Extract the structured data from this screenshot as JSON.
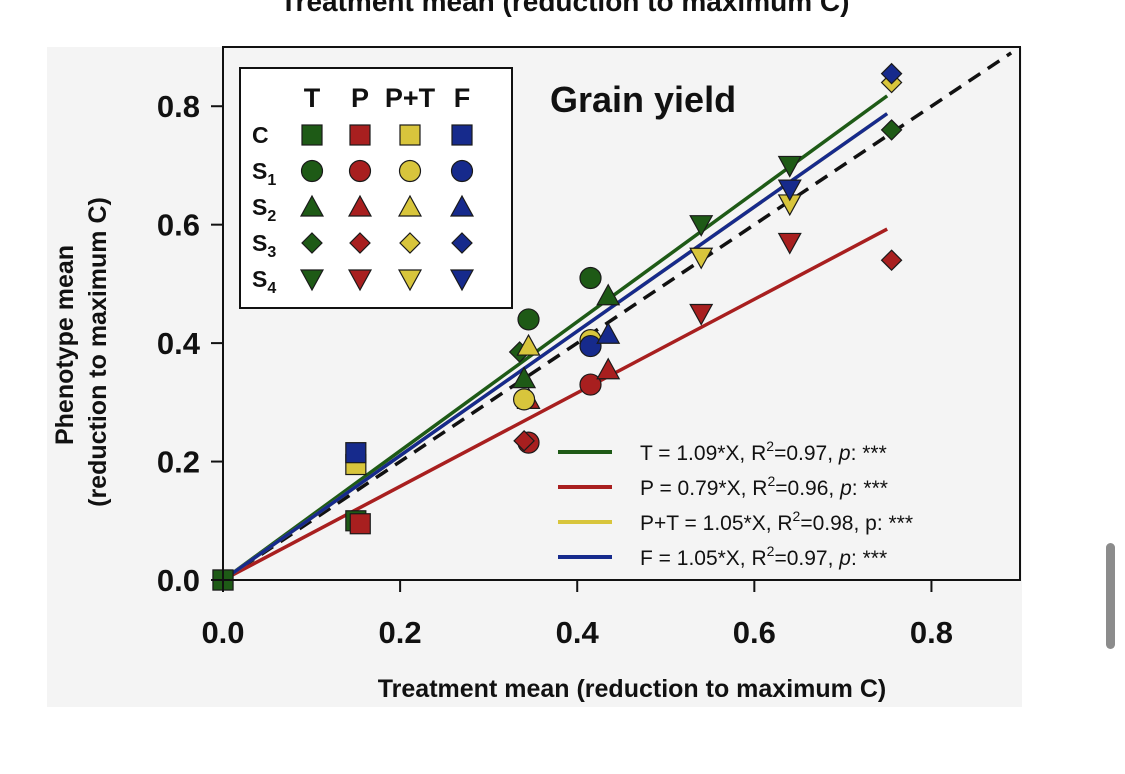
{
  "chart_data": {
    "type": "scatter",
    "cropped_top_title": "Treatment mean (reduction to maximum C)",
    "title": "Grain yield",
    "xlabel": "Treatment mean (reduction to maximum C)",
    "ylabel_line1": "Phenotype mean",
    "ylabel_line2": "(reduction to maximum C)",
    "xlim": [
      0.0,
      0.9
    ],
    "ylim": [
      0.0,
      0.9
    ],
    "x_ticks": [
      "0.0",
      "0.2",
      "0.4",
      "0.6",
      "0.8"
    ],
    "y_ticks": [
      "0.0",
      "0.2",
      "0.4",
      "0.6",
      "0.8"
    ],
    "identity_line": {
      "style": "dashed",
      "slope": 1
    },
    "marker_legend": {
      "columns": [
        "T",
        "P",
        "P+T",
        "F"
      ],
      "rows": [
        {
          "label": "C",
          "sub": "",
          "shape": "square"
        },
        {
          "label": "S",
          "sub": "1",
          "shape": "circle"
        },
        {
          "label": "S",
          "sub": "2",
          "shape": "triangle-up"
        },
        {
          "label": "S",
          "sub": "3",
          "shape": "diamond"
        },
        {
          "label": "S",
          "sub": "4",
          "shape": "triangle-down"
        }
      ]
    },
    "series": [
      {
        "name": "T",
        "color": "#1e5a16",
        "slope": 1.09,
        "legend_text": "T = 1.09*X, R",
        "r2": "=0.97, ",
        "p": "p",
        "stars": ": ***",
        "points": [
          {
            "shape": "square",
            "x": 0.0,
            "y": 0.0
          },
          {
            "shape": "square",
            "x": 0.15,
            "y": 0.1
          },
          {
            "shape": "circle",
            "x": 0.345,
            "y": 0.44
          },
          {
            "shape": "circle",
            "x": 0.415,
            "y": 0.51
          },
          {
            "shape": "triangle-up",
            "x": 0.34,
            "y": 0.34
          },
          {
            "shape": "triangle-up",
            "x": 0.435,
            "y": 0.48
          },
          {
            "shape": "diamond",
            "x": 0.335,
            "y": 0.385
          },
          {
            "shape": "diamond",
            "x": 0.755,
            "y": 0.76
          },
          {
            "shape": "triangle-down",
            "x": 0.54,
            "y": 0.6
          },
          {
            "shape": "triangle-down",
            "x": 0.64,
            "y": 0.7
          }
        ]
      },
      {
        "name": "P",
        "color": "#a81f1f",
        "slope": 0.79,
        "legend_text": "P = 0.79*X, R",
        "r2": "=0.96, ",
        "p": "p",
        "stars": ": ***",
        "points": [
          {
            "shape": "square",
            "x": 0.155,
            "y": 0.095
          },
          {
            "shape": "circle",
            "x": 0.345,
            "y": 0.232
          },
          {
            "shape": "circle",
            "x": 0.415,
            "y": 0.33
          },
          {
            "shape": "triangle-up",
            "x": 0.345,
            "y": 0.305
          },
          {
            "shape": "triangle-up",
            "x": 0.435,
            "y": 0.355
          },
          {
            "shape": "diamond",
            "x": 0.34,
            "y": 0.235
          },
          {
            "shape": "diamond",
            "x": 0.755,
            "y": 0.54
          },
          {
            "shape": "triangle-down",
            "x": 0.54,
            "y": 0.45
          },
          {
            "shape": "triangle-down",
            "x": 0.64,
            "y": 0.57
          }
        ]
      },
      {
        "name": "P+T",
        "color": "#d8c53c",
        "slope": 1.05,
        "legend_text": "P+T = 1.05*X, R",
        "r2": "=0.98, ",
        "p": "p",
        "stars": ": ***",
        "points": [
          {
            "shape": "square",
            "x": 0.15,
            "y": 0.195
          },
          {
            "shape": "circle",
            "x": 0.34,
            "y": 0.305
          },
          {
            "shape": "circle",
            "x": 0.415,
            "y": 0.405
          },
          {
            "shape": "triangle-up",
            "x": 0.345,
            "y": 0.395
          },
          {
            "shape": "diamond",
            "x": 0.755,
            "y": 0.84
          },
          {
            "shape": "triangle-down",
            "x": 0.54,
            "y": 0.545
          },
          {
            "shape": "triangle-down",
            "x": 0.64,
            "y": 0.635
          }
        ]
      },
      {
        "name": "F",
        "color": "#162a8c",
        "slope": 1.05,
        "legend_text": "F = 1.05*X, R",
        "r2": "=0.97, ",
        "p": "p",
        "stars": ": ***",
        "points": [
          {
            "shape": "square",
            "x": 0.15,
            "y": 0.215
          },
          {
            "shape": "circle",
            "x": 0.415,
            "y": 0.395
          },
          {
            "shape": "triangle-up",
            "x": 0.435,
            "y": 0.415
          },
          {
            "shape": "diamond",
            "x": 0.755,
            "y": 0.855
          },
          {
            "shape": "triangle-down",
            "x": 0.64,
            "y": 0.66
          }
        ]
      }
    ]
  }
}
